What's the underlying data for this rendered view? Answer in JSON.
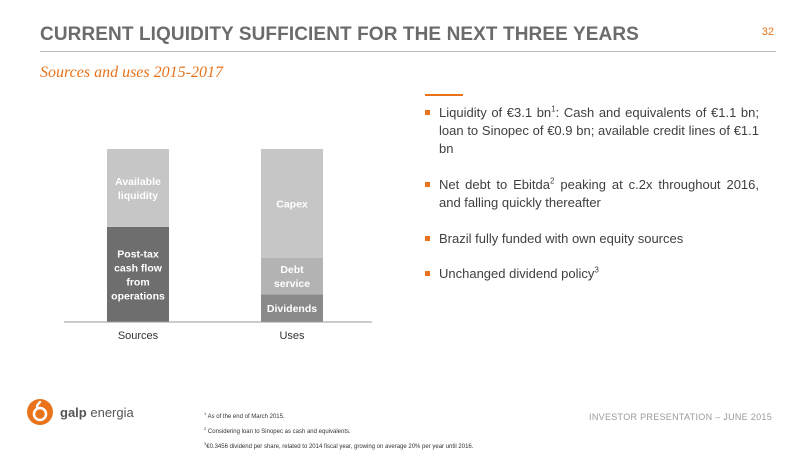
{
  "header": {
    "title": "CURRENT LIQUIDITY SUFFICIENT FOR THE NEXT THREE YEARS",
    "page_number": "32",
    "subtitle": "Sources and uses 2015-2017"
  },
  "chart_data": {
    "type": "bar",
    "stacked": true,
    "categories": [
      "Sources",
      "Uses"
    ],
    "series": [
      {
        "category": "Sources",
        "name": "Post-tax cash flow from operations",
        "lines": [
          "Post-tax",
          "cash flow",
          "from",
          "operations"
        ],
        "value": 55,
        "color": "#6e6e6e"
      },
      {
        "category": "Sources",
        "name": "Available liquidity",
        "lines": [
          "Available",
          "liquidity"
        ],
        "value": 45,
        "color": "#c6c6c6"
      },
      {
        "category": "Uses",
        "name": "Dividends",
        "lines": [
          "Dividends"
        ],
        "value": 16,
        "color": "#8a8a8a"
      },
      {
        "category": "Uses",
        "name": "Debt service",
        "lines": [
          "Debt",
          "service"
        ],
        "value": 21,
        "color": "#b3b3b3"
      },
      {
        "category": "Uses",
        "name": "Capex",
        "lines": [
          "Capex"
        ],
        "value": 63,
        "color": "#c6c6c6"
      }
    ],
    "ylim": [
      0,
      100
    ],
    "grid": false,
    "legend": "none"
  },
  "bullets": [
    {
      "text": "Liquidity of €3.1 bn",
      "sup": "1",
      "rest": ": Cash and equivalents of €1.1 bn; loan to Sinopec of €0.9 bn; available credit lines of €1.1 bn"
    },
    {
      "text": "Net debt to Ebitda",
      "sup": "2",
      "rest": " peaking at c.2x throughout 2016, and falling quickly thereafter"
    },
    {
      "text": "Brazil fully funded with own equity sources",
      "sup": "",
      "rest": ""
    },
    {
      "text": "Unchanged dividend policy",
      "sup": "3",
      "rest": ""
    }
  ],
  "footnotes": [
    {
      "num": "1",
      "text": "As of the end of March 2015."
    },
    {
      "num": "2",
      "text": "Considering loan to Sinopec as cash and equivalents."
    },
    {
      "num": "3",
      "text": "€0.3456 dividend per share, related to 2014 fiscal year, growing on average 20% per year until 2016."
    }
  ],
  "logo": {
    "brand": "galp",
    "suffix": "energia"
  },
  "footer": {
    "right": "INVESTOR PRESENTATION – JUNE 2015"
  },
  "colors": {
    "accent": "#e8731a",
    "title": "#6b6b6b"
  }
}
